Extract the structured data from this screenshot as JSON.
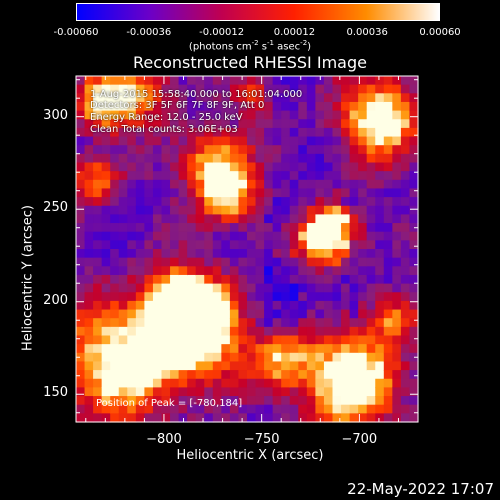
{
  "colorbar": {
    "ticks": [
      "-0.00060",
      "-0.00036",
      "-0.00012",
      "0.00012",
      "0.00036",
      "0.00060"
    ],
    "units_parts": [
      "(photons cm",
      "-2",
      " s",
      "-1",
      " asec",
      "-2",
      ")"
    ],
    "colors": [
      "#0000ff",
      "#6b00c8",
      "#c00050",
      "#ff2000",
      "#ff8c00",
      "#ffffff"
    ]
  },
  "title": "Reconstructed RHESSI Image",
  "info": {
    "line1": "1-Aug-2015 15:58:40.000 to 16:01:04.000",
    "line2": "Detectors: 3F 5F 6F 7F 8F 9F, Att 0",
    "line3": "Energy Range: 12.0 - 25.0 keV",
    "line4": "Clean    Total counts: 3.06E+03"
  },
  "peak": "Position of Peak = [-780,184]",
  "footer_date": "22-May-2022 17:07",
  "chart_data": {
    "type": "heatmap",
    "title": "Reconstructed RHESSI Image",
    "xlabel": "Heliocentric X (arcsec)",
    "ylabel": "Heliocentric Y (arcsec)",
    "x_ticks": [
      "−800",
      "−750",
      "−700"
    ],
    "x_tick_values": [
      -800,
      -750,
      -700
    ],
    "y_ticks": [
      "150",
      "200",
      "250",
      "300"
    ],
    "y_tick_values": [
      150,
      200,
      250,
      300
    ],
    "xlim": [
      -845,
      -670
    ],
    "ylim": [
      135,
      322
    ],
    "color_range": [
      -0.0006,
      0.0006
    ],
    "peak_position": [
      -780,
      184
    ],
    "grid": false,
    "colorbar_position": "top"
  }
}
